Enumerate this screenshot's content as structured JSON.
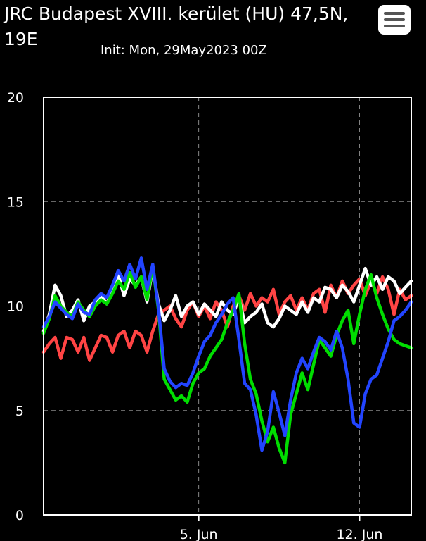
{
  "header": {
    "title": "JRC Budapest XVIII. kerület (HU) 47,5N, 19E",
    "subtitle": "Init: Mon, 29May2023 00Z",
    "menu_icon": "hamburger-menu-icon"
  },
  "chart_data": {
    "type": "line",
    "title": "JRC Budapest XVIII. kerület (HU) 47,5N, 19E",
    "subtitle": "Init: Mon, 29May2023 00Z",
    "ylim": [
      0,
      20
    ],
    "xlim": [
      0,
      64
    ],
    "y_ticks": [
      "0",
      "5",
      "10",
      "15",
      "20"
    ],
    "x_ticks": [
      {
        "label": "5. Jun",
        "x": 27
      },
      {
        "label": "12. Jun",
        "x": 55
      }
    ],
    "grid": true,
    "background": "#000000",
    "series": [
      {
        "color": "#ff4444",
        "values": [
          7.8,
          8.2,
          8.5,
          7.5,
          8.5,
          8.4,
          7.8,
          8.5,
          7.4,
          8.0,
          8.6,
          8.5,
          7.8,
          8.6,
          8.8,
          8.0,
          8.8,
          8.6,
          7.8,
          8.8,
          9.6,
          9.8,
          10.0,
          9.4,
          9.0,
          9.8,
          10.2,
          9.5,
          10.0,
          9.4,
          10.2,
          9.8,
          9.0,
          10.0,
          10.5,
          9.8,
          10.6,
          10.0,
          10.4,
          10.2,
          10.8,
          9.6,
          10.2,
          10.5,
          9.8,
          10.4,
          9.8,
          10.6,
          10.8,
          9.7,
          11.0,
          10.4,
          11.2,
          10.6,
          11.0,
          11.3,
          10.5,
          11.2,
          10.6,
          11.4,
          10.8,
          9.6,
          10.8,
          10.3,
          10.5
        ]
      },
      {
        "color": "#ffffff",
        "values": [
          8.8,
          9.6,
          11.0,
          10.5,
          9.5,
          9.8,
          10.3,
          9.3,
          10.0,
          10.2,
          10.5,
          10.1,
          10.8,
          11.5,
          10.5,
          11.3,
          11.0,
          11.4,
          10.2,
          11.8,
          10.1,
          9.3,
          9.8,
          10.5,
          9.5,
          10.0,
          10.2,
          9.6,
          10.1,
          9.8,
          9.5,
          10.2,
          9.8,
          9.6,
          10.4,
          9.2,
          9.5,
          9.7,
          10.1,
          9.2,
          9.0,
          9.4,
          10.0,
          9.8,
          9.6,
          10.2,
          9.7,
          10.4,
          10.2,
          10.9,
          10.8,
          10.4,
          11.0,
          10.7,
          10.2,
          11.0,
          11.8,
          11.0,
          11.4,
          10.8,
          11.4,
          11.2,
          10.6,
          10.9,
          11.2
        ]
      },
      {
        "color": "#00dd00",
        "values": [
          8.7,
          9.4,
          10.5,
          10.0,
          9.7,
          9.5,
          10.2,
          9.8,
          9.5,
          10.0,
          10.3,
          10.1,
          10.6,
          11.2,
          10.8,
          11.6,
          10.9,
          11.4,
          10.3,
          11.9,
          9.8,
          6.5,
          6.0,
          5.5,
          5.7,
          5.4,
          6.3,
          6.8,
          7.0,
          7.6,
          8.0,
          8.4,
          9.2,
          9.8,
          10.6,
          8.2,
          6.5,
          5.8,
          4.5,
          3.5,
          4.2,
          3.2,
          2.5,
          4.8,
          5.8,
          6.8,
          6.0,
          7.2,
          8.4,
          8.0,
          7.6,
          8.6,
          9.3,
          9.8,
          8.2,
          9.6,
          10.8,
          11.5,
          10.4,
          9.6,
          8.9,
          8.4,
          8.2,
          8.1,
          8.0
        ]
      },
      {
        "color": "#2244ff",
        "values": [
          9.0,
          9.5,
          10.2,
          9.9,
          9.6,
          9.4,
          10.1,
          9.7,
          9.6,
          10.3,
          10.6,
          10.4,
          11.0,
          11.7,
          11.2,
          12.0,
          11.3,
          12.3,
          10.8,
          12.0,
          9.9,
          7.0,
          6.4,
          6.1,
          6.3,
          6.2,
          6.8,
          7.6,
          8.3,
          8.6,
          9.2,
          9.6,
          10.1,
          10.4,
          8.4,
          6.3,
          6.0,
          4.8,
          3.1,
          4.0,
          5.9,
          4.9,
          3.8,
          5.5,
          6.8,
          7.5,
          7.0,
          7.8,
          8.5,
          8.3,
          7.9,
          8.8,
          8.0,
          6.5,
          4.4,
          4.2,
          5.8,
          6.5,
          6.7,
          7.5,
          8.3,
          9.3,
          9.5,
          9.8,
          10.2
        ]
      }
    ]
  }
}
